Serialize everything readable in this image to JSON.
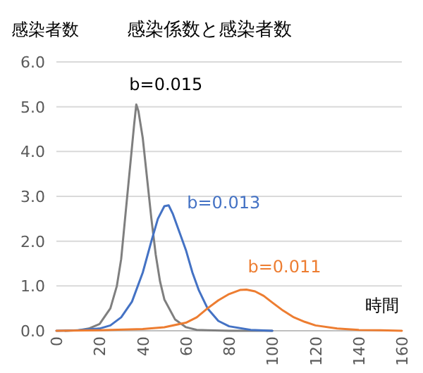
{
  "chart_data": {
    "type": "line",
    "title": "感染係数と感染者数",
    "ylabel": "感染者数",
    "xlabel": "時間",
    "xlim": [
      0,
      160
    ],
    "xticks": [
      0,
      20,
      40,
      60,
      80,
      100,
      120,
      140,
      160
    ],
    "ylim": [
      0,
      6
    ],
    "yticks": [
      {
        "value": 0,
        "label": "0.0"
      },
      {
        "value": 1,
        "label": "1.0"
      },
      {
        "value": 2,
        "label": "2.0"
      },
      {
        "value": 3,
        "label": "3.0"
      },
      {
        "value": 4,
        "label": "4.0"
      },
      {
        "value": 5,
        "label": "5.0"
      },
      {
        "value": 6,
        "label": "6.0"
      }
    ],
    "grid": "y",
    "marker": "none",
    "line_style": "solid",
    "series": [
      {
        "name": "b=0.015",
        "color": "#7f7f7f",
        "x": [
          4,
          10,
          15,
          20,
          25,
          28,
          30,
          32,
          34,
          36,
          37,
          38,
          40,
          42,
          44,
          46,
          48,
          50,
          55,
          60,
          65,
          70,
          80,
          100
        ],
        "values": [
          0,
          0.01,
          0.05,
          0.15,
          0.5,
          1.0,
          1.6,
          2.6,
          3.6,
          4.6,
          5.05,
          4.9,
          4.3,
          3.4,
          2.5,
          1.7,
          1.1,
          0.7,
          0.25,
          0.08,
          0.02,
          0.01,
          0,
          0
        ]
      },
      {
        "name": "b=0.013",
        "color": "#4472c4",
        "x": [
          0,
          10,
          20,
          25,
          30,
          35,
          40,
          44,
          47,
          50,
          52,
          54,
          57,
          60,
          63,
          66,
          70,
          75,
          80,
          90,
          100
        ],
        "values": [
          0,
          0.01,
          0.05,
          0.12,
          0.3,
          0.65,
          1.3,
          2.0,
          2.5,
          2.78,
          2.8,
          2.6,
          2.2,
          1.8,
          1.3,
          0.9,
          0.5,
          0.22,
          0.1,
          0.02,
          0
        ]
      },
      {
        "name": "b=0.011",
        "color": "#ed7d31",
        "x": [
          0,
          20,
          40,
          50,
          60,
          65,
          70,
          75,
          80,
          85,
          88,
          92,
          96,
          100,
          105,
          110,
          115,
          120,
          130,
          140,
          150,
          160
        ],
        "values": [
          0,
          0.01,
          0.04,
          0.08,
          0.18,
          0.3,
          0.5,
          0.68,
          0.82,
          0.91,
          0.92,
          0.88,
          0.78,
          0.63,
          0.45,
          0.3,
          0.2,
          0.12,
          0.05,
          0.02,
          0.01,
          0
        ]
      }
    ]
  }
}
